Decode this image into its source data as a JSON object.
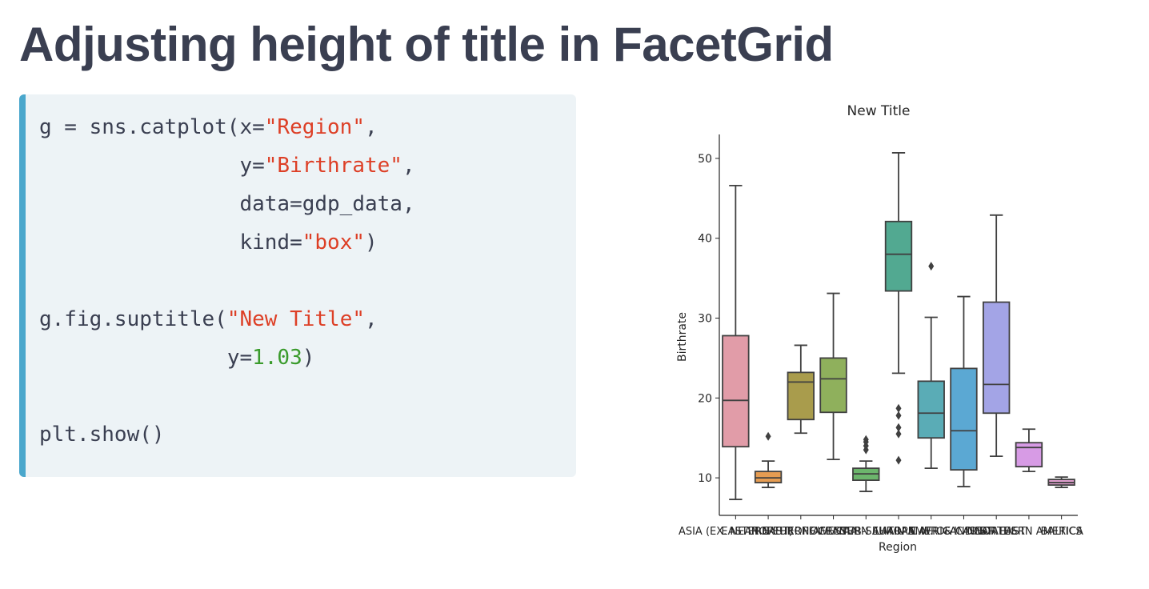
{
  "slide": {
    "title": "Adjusting height of title in FacetGrid"
  },
  "code": {
    "lines": [
      {
        "indent": "",
        "tokens": [
          {
            "t": "g = sns.catplot(x=",
            "c": "plain"
          },
          {
            "t": "\"Region\"",
            "c": "str"
          },
          {
            "t": ",",
            "c": "plain"
          }
        ]
      },
      {
        "indent": "                ",
        "tokens": [
          {
            "t": "y=",
            "c": "plain"
          },
          {
            "t": "\"Birthrate\"",
            "c": "str"
          },
          {
            "t": ",",
            "c": "plain"
          }
        ]
      },
      {
        "indent": "                ",
        "tokens": [
          {
            "t": "data=gdp_data,",
            "c": "plain"
          }
        ]
      },
      {
        "indent": "                ",
        "tokens": [
          {
            "t": "kind=",
            "c": "plain"
          },
          {
            "t": "\"box\"",
            "c": "str"
          },
          {
            "t": ")",
            "c": "plain"
          }
        ]
      },
      {
        "indent": "",
        "tokens": []
      },
      {
        "indent": "",
        "tokens": [
          {
            "t": "g.fig.suptitle(",
            "c": "plain"
          },
          {
            "t": "\"New Title\"",
            "c": "str"
          },
          {
            "t": ",",
            "c": "plain"
          }
        ]
      },
      {
        "indent": "               ",
        "tokens": [
          {
            "t": "y=",
            "c": "plain"
          },
          {
            "t": "1.03",
            "c": "num"
          },
          {
            "t": ")",
            "c": "plain"
          }
        ]
      },
      {
        "indent": "",
        "tokens": []
      },
      {
        "indent": "",
        "tokens": [
          {
            "t": "plt.show()",
            "c": "plain"
          }
        ]
      }
    ]
  },
  "chart_data": {
    "type": "box",
    "title": "New Title",
    "xlabel": "Region",
    "ylabel": "Birthrate",
    "ylim": [
      5.3,
      53
    ],
    "yticks": [
      10,
      20,
      30,
      40,
      50
    ],
    "grid": false,
    "categories": [
      "ASIA (EX. NEAR EAST)",
      "EASTERN EUROPE",
      "NORTHERN AFRICA",
      "OCEANIA",
      "WESTERN EUROPE",
      "SUB-SAHARAN AFRICA",
      "LATIN AMER. & CARIB",
      "C.W. OF IND. STATES",
      "NEAR EAST",
      "NORTHERN AMERICA",
      "BALTICS"
    ],
    "boxes": [
      {
        "whislo": 7.3,
        "q1": 13.9,
        "med": 19.7,
        "q3": 27.8,
        "whishi": 46.6,
        "fliers": [],
        "color": "#e19ca8"
      },
      {
        "whislo": 8.8,
        "q1": 9.4,
        "med": 10.0,
        "q3": 10.8,
        "whishi": 12.1,
        "fliers": [
          15.2
        ],
        "color": "#e59c52"
      },
      {
        "whislo": 15.6,
        "q1": 17.3,
        "med": 22.0,
        "q3": 23.2,
        "whishi": 26.6,
        "fliers": [],
        "color": "#a99c4c"
      },
      {
        "whislo": 12.3,
        "q1": 18.2,
        "med": 22.4,
        "q3": 25.0,
        "whishi": 33.1,
        "fliers": [],
        "color": "#8fb05c"
      },
      {
        "whislo": 8.3,
        "q1": 9.7,
        "med": 10.5,
        "q3": 11.2,
        "whishi": 12.1,
        "fliers": [
          13.5,
          14.0,
          14.5,
          14.8
        ],
        "color": "#6cb56c"
      },
      {
        "whislo": 23.1,
        "q1": 33.4,
        "med": 38.0,
        "q3": 42.1,
        "whishi": 50.7,
        "fliers": [
          12.2,
          15.5,
          16.3,
          17.8,
          18.7
        ],
        "color": "#52a991"
      },
      {
        "whislo": 11.2,
        "q1": 15.0,
        "med": 18.1,
        "q3": 22.1,
        "whishi": 30.1,
        "fliers": [
          36.5
        ],
        "color": "#5aacb6"
      },
      {
        "whislo": 8.9,
        "q1": 11.0,
        "med": 15.9,
        "q3": 23.7,
        "whishi": 32.7,
        "fliers": [],
        "color": "#5ba8d3"
      },
      {
        "whislo": 12.7,
        "q1": 18.1,
        "med": 21.7,
        "q3": 32.0,
        "whishi": 42.9,
        "fliers": [],
        "color": "#a3a4e6"
      },
      {
        "whislo": 10.8,
        "q1": 11.4,
        "med": 13.8,
        "q3": 14.4,
        "whishi": 16.1,
        "fliers": [],
        "color": "#d79be5"
      },
      {
        "whislo": 8.8,
        "q1": 9.1,
        "med": 9.4,
        "q3": 9.8,
        "whishi": 10.1,
        "fliers": [],
        "color": "#e1a0cf"
      }
    ]
  }
}
